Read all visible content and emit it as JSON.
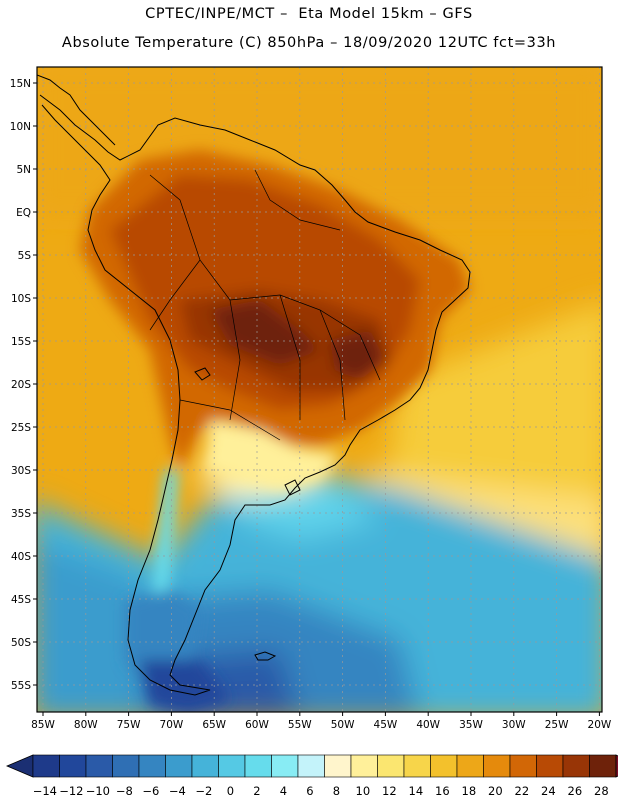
{
  "header": {
    "line1": "CPTEC/INPE/MCT –  Eta Model 15km – GFS",
    "line2": "Absolute Temperature (C) 850hPa – 18/09/2020 12UTC fct=33h"
  },
  "axes": {
    "lat_labels": [
      "15N",
      "10N",
      "5N",
      "EQ",
      "5S",
      "10S",
      "15S",
      "20S",
      "25S",
      "30S",
      "35S",
      "40S",
      "45S",
      "50S",
      "55S"
    ],
    "lon_labels": [
      "85W",
      "80W",
      "75W",
      "70W",
      "65W",
      "60W",
      "55W",
      "50W",
      "45W",
      "40W",
      "35W",
      "30W",
      "25W",
      "20W"
    ]
  },
  "colorbar": {
    "labels": [
      "-14",
      "-12",
      "-10",
      "-8",
      "-6",
      "-4",
      "-2",
      "0",
      "2",
      "4",
      "6",
      "8",
      "10",
      "12",
      "14",
      "16",
      "18",
      "20",
      "22",
      "24",
      "26",
      "28"
    ],
    "colors": [
      "#1e3a8a",
      "#21479b",
      "#2a5aa8",
      "#2f6fb4",
      "#3585c1",
      "#3b9ccd",
      "#45b3d9",
      "#55c9e4",
      "#66dcec",
      "#88ecf4",
      "#c4f3fa",
      "#fff5cc",
      "#fff09a",
      "#fbe670",
      "#f7d54a",
      "#f3c12c",
      "#eda718",
      "#e58a0c",
      "#d26706",
      "#b84a05",
      "#983506",
      "#6e220a"
    ]
  }
}
